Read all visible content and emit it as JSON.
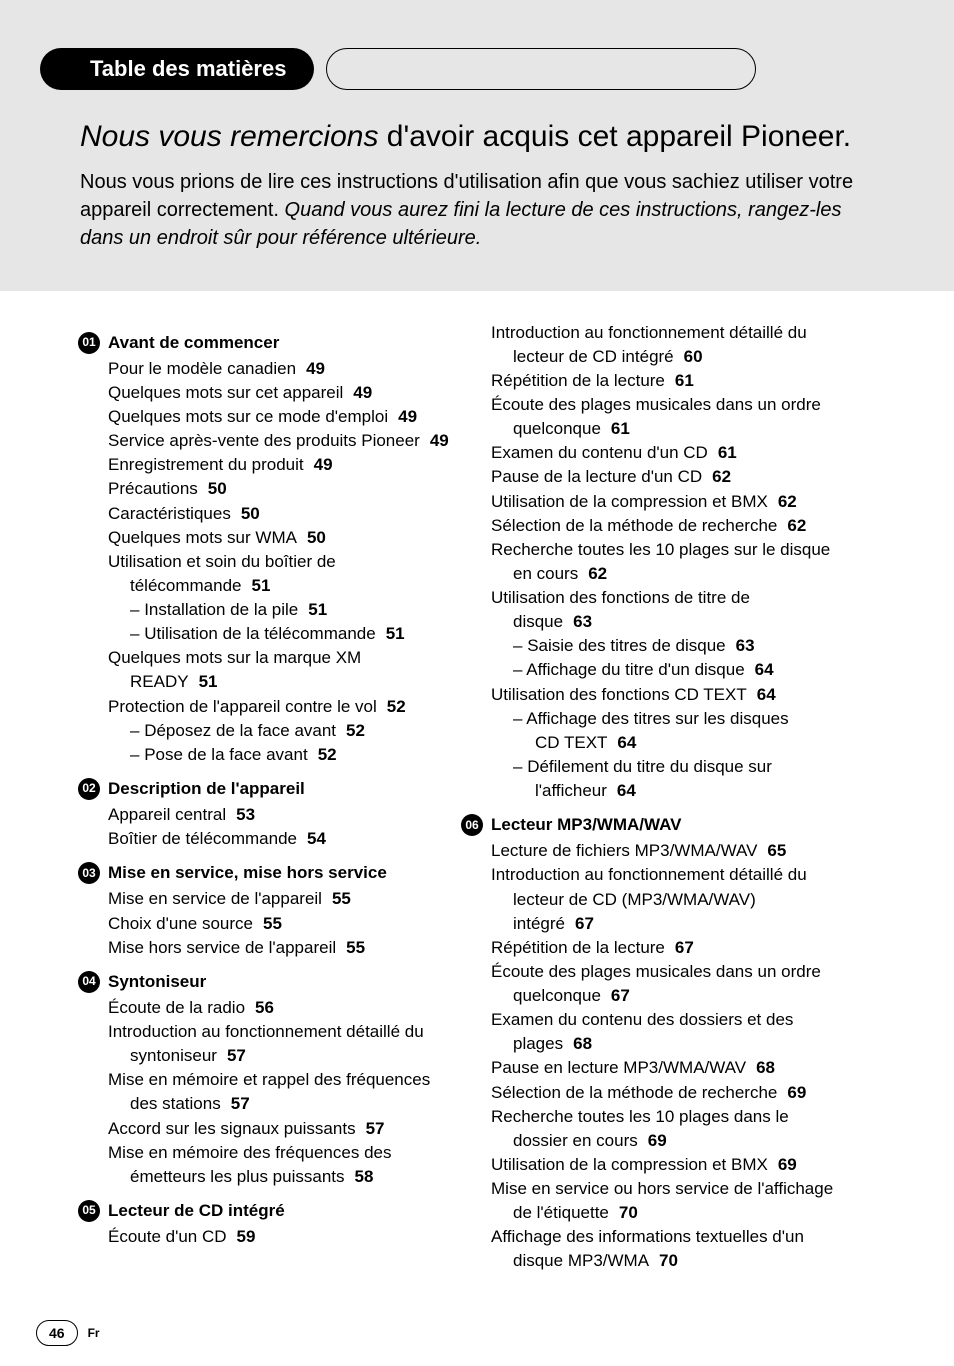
{
  "header": {
    "tab_label": "Table des matières",
    "title_italic": "Nous vous remercions",
    "title_rest": " d'avoir acquis cet appareil Pioneer.",
    "body_plain": "Nous vous prions de lire ces instructions d'utilisation afin que vous sachiez utiliser votre appareil correctement. ",
    "body_italic": "Quand vous aurez fini la lecture de ces instructions, rangez-les dans un endroit sûr pour référence ultérieure."
  },
  "colors": {
    "hero_bg": "#e6e6e6",
    "page_bg": "#ffffff",
    "text": "#000000",
    "bullet_bg": "#000000",
    "bullet_fg": "#ffffff"
  },
  "typography": {
    "body_pt": 17,
    "hero_title_pt": 30,
    "hero_body_pt": 20,
    "tab_pt": 22,
    "bold_page_numbers": true
  },
  "footer": {
    "page": "46",
    "lang": "Fr"
  },
  "left": {
    "s01": {
      "num": "01",
      "title": "Avant de commencer",
      "i0": {
        "t": "Pour le modèle canadien",
        "p": "49"
      },
      "i1": {
        "t": "Quelques mots sur cet appareil",
        "p": "49"
      },
      "i2": {
        "t": "Quelques mots sur ce mode d'emploi",
        "p": "49"
      },
      "i3": {
        "t": "Service après-vente des produits Pioneer",
        "p": "49"
      },
      "i4": {
        "t": "Enregistrement du produit",
        "p": "49"
      },
      "i5": {
        "t": "Précautions",
        "p": "50"
      },
      "i6": {
        "t": "Caractéristiques",
        "p": "50"
      },
      "i7": {
        "t": "Quelques mots sur WMA",
        "p": "50"
      },
      "i8a": "Utilisation et soin du boîtier de",
      "i8b": {
        "t": "télécommande",
        "p": "51"
      },
      "i8s1": {
        "t": "Installation de la pile",
        "p": "51"
      },
      "i8s2": {
        "t": "Utilisation de la télécommande",
        "p": "51"
      },
      "i9a": "Quelques mots sur la marque XM",
      "i9b": {
        "t": "READY",
        "p": "51"
      },
      "i10": {
        "t": "Protection de l'appareil contre le vol",
        "p": "52"
      },
      "i10s1": {
        "t": "Déposez de la face avant",
        "p": "52"
      },
      "i10s2": {
        "t": "Pose de la face avant",
        "p": "52"
      }
    },
    "s02": {
      "num": "02",
      "title": "Description de l'appareil",
      "i0": {
        "t": "Appareil central",
        "p": "53"
      },
      "i1": {
        "t": "Boîtier de télécommande",
        "p": "54"
      }
    },
    "s03": {
      "num": "03",
      "title": "Mise en service, mise hors service",
      "i0": {
        "t": "Mise en service de l'appareil",
        "p": "55"
      },
      "i1": {
        "t": "Choix d'une source",
        "p": "55"
      },
      "i2": {
        "t": "Mise hors service de l'appareil",
        "p": "55"
      }
    },
    "s04": {
      "num": "04",
      "title": "Syntoniseur",
      "i0": {
        "t": "Écoute de la radio",
        "p": "56"
      },
      "i1a": "Introduction au fonctionnement détaillé du",
      "i1b": {
        "t": "syntoniseur",
        "p": "57"
      },
      "i2a": "Mise en mémoire et rappel des fréquences",
      "i2b": {
        "t": "des stations",
        "p": "57"
      },
      "i3": {
        "t": "Accord sur les signaux puissants",
        "p": "57"
      },
      "i4a": "Mise en mémoire des fréquences des",
      "i4b": {
        "t": "émetteurs les plus puissants",
        "p": "58"
      }
    },
    "s05": {
      "num": "05",
      "title": "Lecteur de CD intégré",
      "i0": {
        "t": "Écoute d'un CD",
        "p": "59"
      }
    }
  },
  "right": {
    "s05cont": {
      "i1a": "Introduction au fonctionnement détaillé du",
      "i1b": {
        "t": "lecteur de CD intégré",
        "p": "60"
      },
      "i2": {
        "t": "Répétition de la lecture",
        "p": "61"
      },
      "i3a": "Écoute des plages musicales dans un ordre",
      "i3b": {
        "t": "quelconque",
        "p": "61"
      },
      "i4": {
        "t": "Examen du contenu d'un CD",
        "p": "61"
      },
      "i5": {
        "t": "Pause de la lecture d'un CD",
        "p": "62"
      },
      "i6": {
        "t": "Utilisation de la compression et BMX",
        "p": "62"
      },
      "i7": {
        "t": "Sélection de la méthode de recherche",
        "p": "62"
      },
      "i8a": "Recherche toutes les 10 plages sur le disque",
      "i8b": {
        "t": "en cours",
        "p": "62"
      },
      "i9a": "Utilisation des fonctions de titre de",
      "i9b": {
        "t": "disque",
        "p": "63"
      },
      "i9s1": {
        "t": "Saisie des titres de disque",
        "p": "63"
      },
      "i9s2": {
        "t": "Affichage du titre d'un disque",
        "p": "64"
      },
      "i10": {
        "t": "Utilisation des fonctions CD TEXT",
        "p": "64"
      },
      "i10s1a": "Affichage des titres sur les disques",
      "i10s1b": {
        "t": "CD TEXT",
        "p": "64"
      },
      "i10s2a": "Défilement du titre du disque sur",
      "i10s2b": {
        "t": "l'afficheur",
        "p": "64"
      }
    },
    "s06": {
      "num": "06",
      "title": "Lecteur MP3/WMA/WAV",
      "i0": {
        "t": "Lecture de fichiers MP3/WMA/WAV",
        "p": "65"
      },
      "i1a": "Introduction au fonctionnement détaillé du",
      "i1b": "lecteur de CD (MP3/WMA/WAV)",
      "i1c": {
        "t": "intégré",
        "p": "67"
      },
      "i2": {
        "t": "Répétition de la lecture",
        "p": "67"
      },
      "i3a": "Écoute des plages musicales dans un ordre",
      "i3b": {
        "t": "quelconque",
        "p": "67"
      },
      "i4a": "Examen du contenu des dossiers et des",
      "i4b": {
        "t": "plages",
        "p": "68"
      },
      "i5": {
        "t": "Pause en lecture MP3/WMA/WAV",
        "p": "68"
      },
      "i6": {
        "t": "Sélection de la méthode de recherche",
        "p": "69"
      },
      "i7a": "Recherche toutes les 10 plages dans le",
      "i7b": {
        "t": "dossier en cours",
        "p": "69"
      },
      "i8": {
        "t": "Utilisation de la compression et BMX",
        "p": "69"
      },
      "i9a": "Mise en service ou hors service de l'affichage",
      "i9b": {
        "t": "de l'étiquette",
        "p": "70"
      },
      "i10a": "Affichage des informations textuelles d'un",
      "i10b": {
        "t": "disque MP3/WMA",
        "p": "70"
      }
    }
  }
}
